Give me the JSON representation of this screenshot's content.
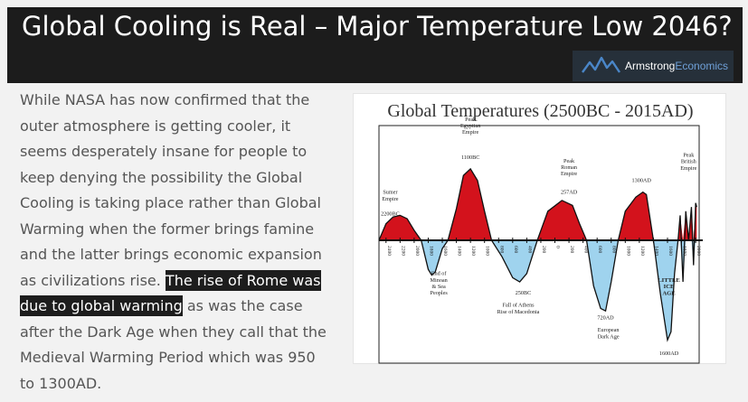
{
  "header": {
    "title": "Global Cooling is Real – Major Temperature Low 2046?",
    "brand_a": "Armstrong",
    "brand_b": "Economics"
  },
  "article": {
    "part1": "While NASA has now confirmed that the outer atmosphere is getting cooler, it seems desperately insane for people to keep denying the possibility the Global Cooling is taking place rather than Global Warming when the former brings famine and the latter brings economic expansion as civilizations rise. ",
    "highlight": "The rise of Rome was due to global warming",
    "part2": " as was the case after the Dark Age when they call that the Medieval Warming Period which was 950 to 1300AD."
  },
  "colors": {
    "warm": "#d3121c",
    "cool": "#9fd3ee",
    "header_bg": "#1c1c1c"
  },
  "chart_data": {
    "type": "area",
    "title": "Global Temperatures (2500BC - 2015AD)",
    "x_ticks": [
      "2400",
      "2200",
      "2000",
      "1800",
      "1600",
      "1400",
      "1200",
      "1000",
      "800",
      "600",
      "400",
      "200",
      "0",
      "200",
      "400",
      "600",
      "800",
      "1000",
      "1200",
      "1400",
      "1600",
      "1800",
      "2000"
    ],
    "series": [
      {
        "values": [
          [
            -2500,
            0
          ],
          [
            -2400,
            0.2
          ],
          [
            -2300,
            0.28
          ],
          [
            -2200,
            0.3
          ],
          [
            -2100,
            0.26
          ],
          [
            -2000,
            0.12
          ],
          [
            -1900,
            0
          ],
          [
            -1800,
            -0.35
          ],
          [
            -1750,
            -0.42
          ],
          [
            -1700,
            -0.38
          ],
          [
            -1600,
            -0.1
          ],
          [
            -1520,
            0
          ],
          [
            -1400,
            0.38
          ],
          [
            -1300,
            0.78
          ],
          [
            -1200,
            0.86
          ],
          [
            -1100,
            0.72
          ],
          [
            -1000,
            0.35
          ],
          [
            -900,
            0
          ],
          [
            -750,
            -0.2
          ],
          [
            -600,
            -0.45
          ],
          [
            -500,
            -0.5
          ],
          [
            -400,
            -0.4
          ],
          [
            -250,
            0
          ],
          [
            -100,
            0.35
          ],
          [
            100,
            0.48
          ],
          [
            250,
            0.42
          ],
          [
            350,
            0.2
          ],
          [
            450,
            0
          ],
          [
            550,
            -0.55
          ],
          [
            650,
            -0.82
          ],
          [
            720,
            -0.85
          ],
          [
            800,
            -0.5
          ],
          [
            900,
            0
          ],
          [
            1000,
            0.35
          ],
          [
            1150,
            0.52
          ],
          [
            1250,
            0.58
          ],
          [
            1300,
            0.55
          ],
          [
            1400,
            0
          ],
          [
            1500,
            -0.65
          ],
          [
            1600,
            -1.2
          ],
          [
            1650,
            -1.1
          ],
          [
            1700,
            -0.4
          ],
          [
            1750,
            0
          ],
          [
            1780,
            0.3
          ],
          [
            1820,
            -0.5
          ],
          [
            1860,
            0.35
          ],
          [
            1900,
            0
          ],
          [
            1940,
            0.4
          ],
          [
            1970,
            -0.3
          ],
          [
            2000,
            0.45
          ],
          [
            2015,
            0.4
          ]
        ]
      }
    ],
    "annotations": [
      {
        "lines": [
          "Sumer",
          "Empire"
        ],
        "x": -2340,
        "y": 0.48
      },
      {
        "lines": [
          "2200BC"
        ],
        "x": -2340,
        "y": 0.3
      },
      {
        "lines": [
          "Peak",
          "Egyptian",
          "Empire"
        ],
        "x": -1200,
        "y": 1.28
      },
      {
        "lines": [
          "1100BC"
        ],
        "x": -1200,
        "y": 0.98
      },
      {
        "lines": [
          "Peak",
          "Roman",
          "Empire"
        ],
        "x": 200,
        "y": 0.78
      },
      {
        "lines": [
          "257AD"
        ],
        "x": 200,
        "y": 0.56
      },
      {
        "lines": [
          "1300AD"
        ],
        "x": 1230,
        "y": 0.7
      },
      {
        "lines": [
          "Peak",
          "British",
          "Empire"
        ],
        "x": 1900,
        "y": 0.85
      },
      {
        "lines": [
          "End of",
          "Minoan",
          "& Sea",
          "Peoples"
        ],
        "x": -1650,
        "y": -0.42
      },
      {
        "lines": [
          "250BC"
        ],
        "x": -450,
        "y": -0.65
      },
      {
        "lines": [
          "Fall of Athens",
          "Rise of Macedonia"
        ],
        "x": -520,
        "y": -0.8
      },
      {
        "lines": [
          "720AD"
        ],
        "x": 720,
        "y": -0.95
      },
      {
        "lines": [
          "European",
          "Dark Age"
        ],
        "x": 760,
        "y": -1.1
      },
      {
        "lines": [
          "LITTLE",
          "ICE",
          "AGE"
        ],
        "x": 1620,
        "y": -0.5
      },
      {
        "lines": [
          "1600AD"
        ],
        "x": 1620,
        "y": -1.38
      }
    ]
  }
}
